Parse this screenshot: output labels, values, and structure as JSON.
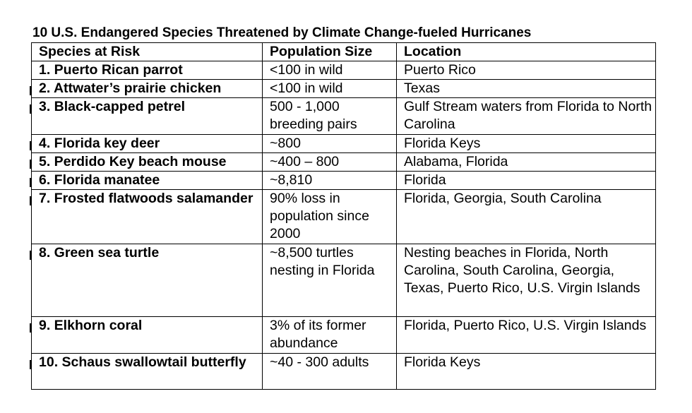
{
  "title": "10 U.S. Endangered Species Threatened by Climate Change-fueled Hurricanes",
  "headers": [
    "Species at Risk",
    "Population Size",
    "Location"
  ],
  "rows": [
    {
      "species": "1. Puerto Rican parrot",
      "population": "<100 in wild",
      "location": "Puerto Rico"
    },
    {
      "species": "2. Attwater’s prairie chicken",
      "population": "<100 in wild",
      "location": "Texas"
    },
    {
      "species": "3. Black-capped petrel",
      "population": "500 - 1,000 breeding pairs",
      "location": "Gulf Stream waters from Florida to North Carolina"
    },
    {
      "species": "4. Florida key deer",
      "population": "~800",
      "location": "Florida Keys"
    },
    {
      "species": "5. Perdido Key beach mouse",
      "population": "~400 – 800",
      "location": "Alabama, Florida"
    },
    {
      "species": "6. Florida manatee",
      "population": "~8,810",
      "location": "Florida"
    },
    {
      "species": "7. Frosted flatwoods salamander",
      "population": "90% loss in population since 2000",
      "location": "Florida, Georgia, South Carolina"
    },
    {
      "species": "8. Green sea turtle",
      "population": "~8,500 turtles nesting in Florida",
      "location": "Nesting beaches in Florida, North Carolina, South Carolina, Georgia, Texas, Puerto Rico, U.S. Virgin Islands"
    },
    {
      "species": "9. Elkhorn coral",
      "population": "3% of its former abundance",
      "location": "Florida, Puerto Rico, U.S. Virgin Islands"
    },
    {
      "species": "10. Schaus swallowtail butterfly",
      "population": "~40 - 300 adults",
      "location": "Florida Keys"
    }
  ]
}
